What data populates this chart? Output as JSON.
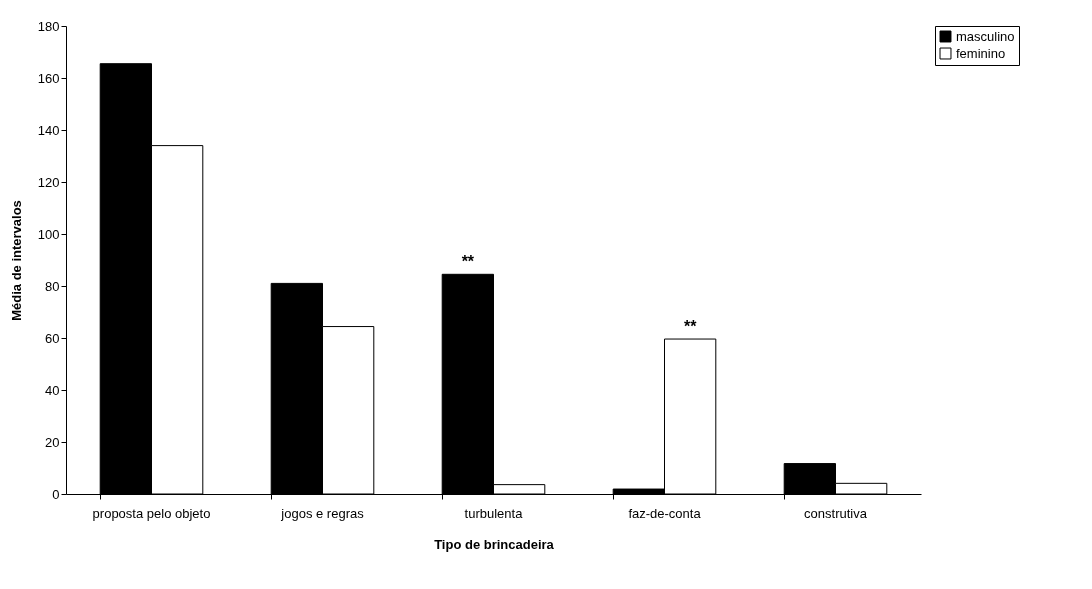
{
  "chart_data": {
    "type": "bar",
    "xlabel": "Tipo de brincadeira",
    "ylabel": "Média de intervalos",
    "categories": [
      "proposta pelo objeto",
      "jogos e regras",
      "turbulenta",
      "faz-de-conta",
      "construtiva"
    ],
    "series": [
      {
        "name": "masculino",
        "color": "#000000",
        "values": [
          165.5,
          81,
          84.5,
          1.9,
          11.7
        ]
      },
      {
        "name": "feminino",
        "color": "#ffffff",
        "values": [
          134,
          64.4,
          3.6,
          59.6,
          4.1
        ]
      }
    ],
    "ylim": [
      0,
      180
    ],
    "yticks": [
      0,
      20,
      40,
      60,
      80,
      100,
      120,
      140,
      160,
      180
    ],
    "legend": "right",
    "grid": false,
    "annotations": [
      {
        "text": "**",
        "x": "turbulenta",
        "y": 84.5
      },
      {
        "text": "**",
        "x": "faz-de-conta",
        "y": 59.6
      }
    ]
  }
}
